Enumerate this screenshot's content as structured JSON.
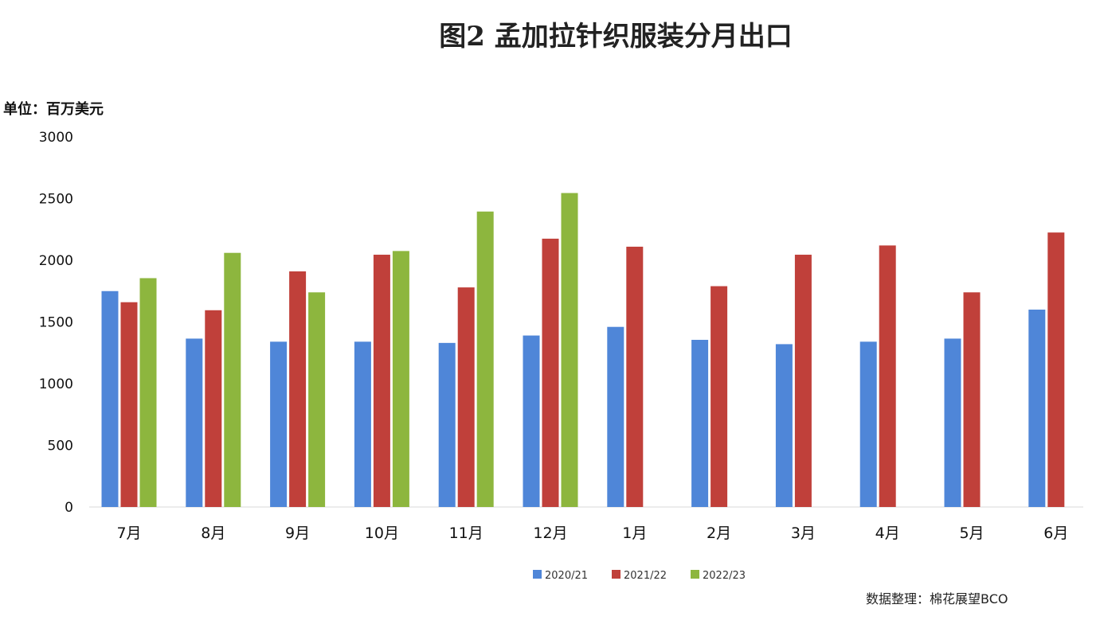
{
  "chart_data": {
    "type": "bar",
    "title": "图2 孟加拉针织服装分月出口",
    "ylabel": "单位：百万美元",
    "xlabel": "",
    "ylim": [
      0,
      3000
    ],
    "yticks": [
      0,
      500,
      1000,
      1500,
      2000,
      2500,
      3000
    ],
    "categories": [
      "7月",
      "8月",
      "9月",
      "10月",
      "11月",
      "12月",
      "1月",
      "2月",
      "3月",
      "4月",
      "5月",
      "6月"
    ],
    "series": [
      {
        "name": "2020/21",
        "color": "#4f86d8",
        "values": [
          1750,
          1365,
          1340,
          1340,
          1330,
          1390,
          1460,
          1355,
          1320,
          1340,
          1365,
          1600
        ]
      },
      {
        "name": "2021/22",
        "color": "#c0403a",
        "values": [
          1660,
          1595,
          1910,
          2045,
          1780,
          2175,
          2110,
          1790,
          2045,
          2120,
          1740,
          2225
        ]
      },
      {
        "name": "2022/23",
        "color": "#8db63e",
        "values": [
          1855,
          2060,
          1740,
          2075,
          2395,
          2545,
          null,
          null,
          null,
          null,
          null,
          null
        ]
      }
    ],
    "legend": "bottom",
    "grid": false
  },
  "source": "数据整理：棉花展望BCO"
}
